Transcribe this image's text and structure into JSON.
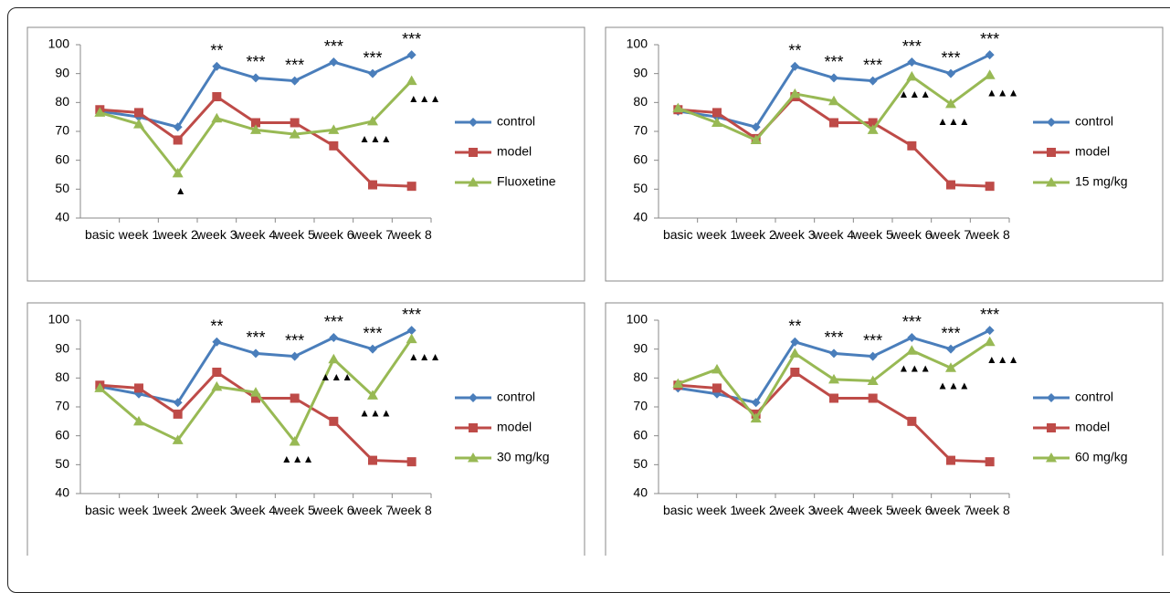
{
  "chart_data": [
    {
      "type": "line",
      "categories": [
        "basic",
        "week 1",
        "week 2",
        "week 3",
        "week 4",
        "week 5",
        "week 6",
        "week 7",
        "week 8"
      ],
      "ylim": [
        40,
        100
      ],
      "yticks": [
        40,
        50,
        60,
        70,
        80,
        90,
        100
      ],
      "series": [
        {
          "name": "control",
          "color": "#4a7ebb",
          "marker": "diamond",
          "values": [
            77,
            75,
            71.5,
            92.5,
            88.5,
            87.5,
            94,
            90,
            96.5
          ],
          "annotations": [
            null,
            null,
            null,
            "**",
            "***",
            "***",
            "***",
            "***",
            "***"
          ]
        },
        {
          "name": "model",
          "color": "#be4b48",
          "marker": "square",
          "values": [
            77.5,
            76.5,
            67,
            82,
            73,
            73,
            65,
            51.5,
            51
          ]
        },
        {
          "name": "Fluoxetine",
          "color": "#98b954",
          "marker": "triangle",
          "values": [
            76.5,
            72.5,
            55.5,
            74.5,
            70.5,
            69,
            70.5,
            73.5,
            87.5
          ],
          "annotations": [
            null,
            null,
            "▲",
            null,
            null,
            null,
            null,
            "▲▲▲",
            "▲▲▲"
          ]
        }
      ]
    },
    {
      "type": "line",
      "categories": [
        "basic",
        "week 1",
        "week 2",
        "week 3",
        "week 4",
        "week 5",
        "week 6",
        "week 7",
        "week 8"
      ],
      "ylim": [
        40,
        100
      ],
      "yticks": [
        40,
        50,
        60,
        70,
        80,
        90,
        100
      ],
      "series": [
        {
          "name": "control",
          "color": "#4a7ebb",
          "marker": "diamond",
          "values": [
            77,
            75,
            71.5,
            92.5,
            88.5,
            87.5,
            94,
            90,
            96.5
          ],
          "annotations": [
            null,
            null,
            null,
            "**",
            "***",
            "***",
            "***",
            "***",
            "***"
          ]
        },
        {
          "name": "model",
          "color": "#be4b48",
          "marker": "square",
          "values": [
            77.5,
            76.5,
            67.5,
            82,
            73,
            73,
            65,
            51.5,
            51
          ]
        },
        {
          "name": "15 mg/kg",
          "color": "#98b954",
          "marker": "triangle",
          "values": [
            78,
            73,
            67,
            83,
            80.5,
            70.5,
            89,
            79.5,
            89.5
          ],
          "annotations": [
            null,
            null,
            null,
            null,
            null,
            null,
            "▲▲▲",
            "▲▲▲",
            "▲▲▲"
          ]
        }
      ]
    },
    {
      "type": "line",
      "categories": [
        "basic",
        "week 1",
        "week 2",
        "week 3",
        "week 4",
        "week 5",
        "week 6",
        "week 7",
        "week 8"
      ],
      "ylim": [
        40,
        100
      ],
      "yticks": [
        40,
        50,
        60,
        70,
        80,
        90,
        100
      ],
      "series": [
        {
          "name": "control",
          "color": "#4a7ebb",
          "marker": "diamond",
          "values": [
            77,
            74.5,
            71.5,
            92.5,
            88.5,
            87.5,
            94,
            90,
            96.5
          ],
          "annotations": [
            null,
            null,
            null,
            "**",
            "***",
            "***",
            "***",
            "***",
            "***"
          ]
        },
        {
          "name": "model",
          "color": "#be4b48",
          "marker": "square",
          "values": [
            77.5,
            76.5,
            67.5,
            82,
            73,
            73,
            65,
            51.5,
            51
          ]
        },
        {
          "name": "30 mg/kg",
          "color": "#98b954",
          "marker": "triangle",
          "values": [
            76.5,
            65,
            58.5,
            77,
            75,
            58,
            86.5,
            74,
            93.5
          ],
          "annotations": [
            null,
            null,
            null,
            null,
            null,
            "▲▲▲",
            "▲▲▲",
            "▲▲▲",
            "▲▲▲"
          ]
        }
      ]
    },
    {
      "type": "line",
      "categories": [
        "basic",
        "week 1",
        "week 2",
        "week 3",
        "week 4",
        "week 5",
        "week 6",
        "week 7",
        "week 8"
      ],
      "ylim": [
        40,
        100
      ],
      "yticks": [
        40,
        50,
        60,
        70,
        80,
        90,
        100
      ],
      "series": [
        {
          "name": "control",
          "color": "#4a7ebb",
          "marker": "diamond",
          "values": [
            76.5,
            74.5,
            71.5,
            92.5,
            88.5,
            87.5,
            94,
            90,
            96.5
          ],
          "annotations": [
            null,
            null,
            null,
            "**",
            "***",
            "***",
            "***",
            "***",
            "***"
          ]
        },
        {
          "name": "model",
          "color": "#be4b48",
          "marker": "square",
          "values": [
            77.5,
            76.5,
            67.5,
            82,
            73,
            73,
            65,
            51.5,
            51
          ]
        },
        {
          "name": "60 mg/kg",
          "color": "#98b954",
          "marker": "triangle",
          "values": [
            78,
            83,
            66,
            88.5,
            79.5,
            79,
            89.5,
            83.5,
            92.5
          ],
          "annotations": [
            null,
            null,
            null,
            null,
            null,
            null,
            "▲▲▲",
            "▲▲▲",
            "▲▲▲"
          ]
        }
      ]
    }
  ]
}
